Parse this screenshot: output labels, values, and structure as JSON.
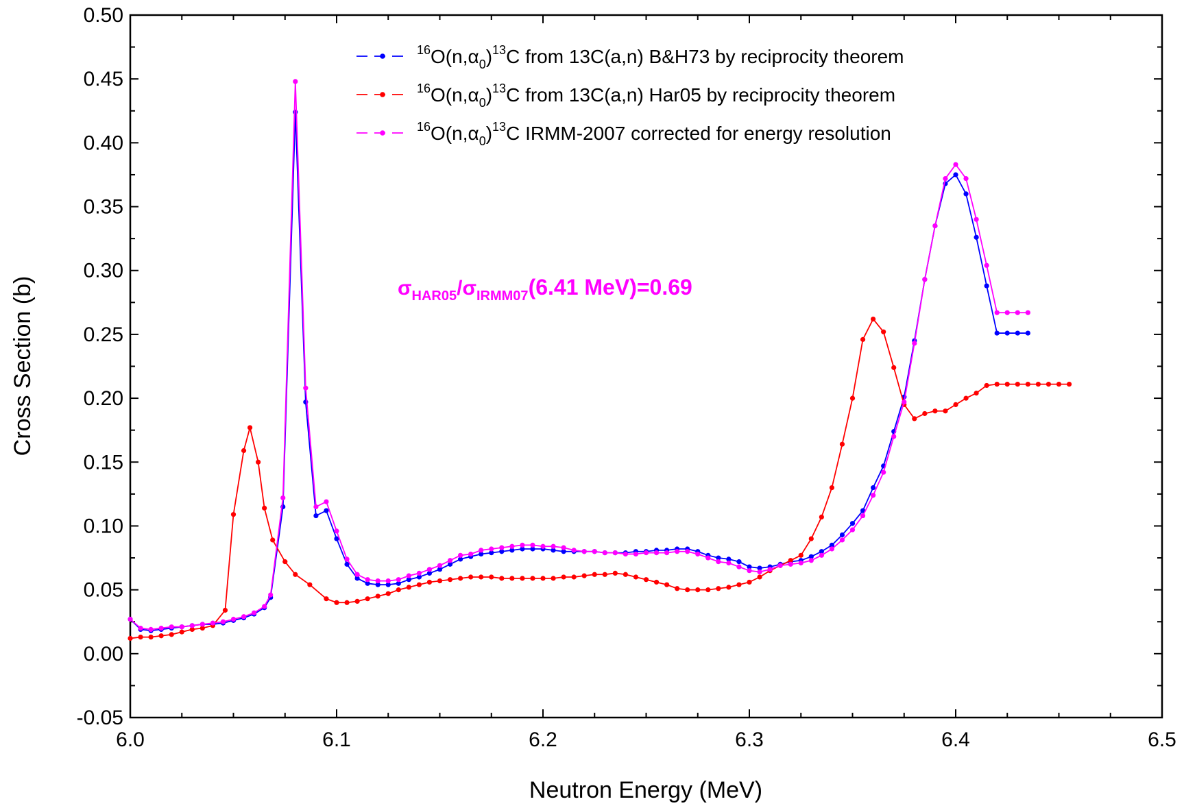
{
  "chart_data": {
    "type": "line",
    "xlabel": "Neutron Energy (MeV)",
    "ylabel": "Cross Section (b)",
    "xlim": [
      6.0,
      6.5
    ],
    "ylim": [
      -0.05,
      0.5
    ],
    "x_ticks": [
      "6.0",
      "6.1",
      "6.2",
      "6.3",
      "6.4",
      "6.5"
    ],
    "y_ticks": [
      "-0.05",
      "0.00",
      "0.05",
      "0.10",
      "0.15",
      "0.20",
      "0.25",
      "0.30",
      "0.35",
      "0.40",
      "0.45",
      "0.50"
    ],
    "grid": false,
    "legend_position": "top",
    "annotation": {
      "sigma": "σ",
      "sub1": "HAR05",
      "slash": "/",
      "sub2": "IRMM07",
      "rest": "(6.41 MeV)=0.69",
      "color": "#ff00ff"
    },
    "series": [
      {
        "legend": {
          "sup1": "16",
          "pre": "O(n,α",
          "sub": "0",
          "post": ")",
          "sup2": "13",
          "text": "C from 13C(a,n) B&H73 by reciprocity theorem"
        },
        "color": "#0000ff",
        "x": [
          6.0,
          6.005,
          6.01,
          6.015,
          6.02,
          6.025,
          6.03,
          6.035,
          6.04,
          6.045,
          6.05,
          6.055,
          6.06,
          6.065,
          6.068,
          6.074,
          6.08,
          6.085,
          6.09,
          6.095,
          6.1,
          6.105,
          6.11,
          6.115,
          6.12,
          6.125,
          6.13,
          6.135,
          6.14,
          6.145,
          6.15,
          6.155,
          6.16,
          6.165,
          6.17,
          6.175,
          6.18,
          6.185,
          6.19,
          6.195,
          6.2,
          6.205,
          6.21,
          6.215,
          6.22,
          6.225,
          6.23,
          6.235,
          6.24,
          6.245,
          6.25,
          6.255,
          6.26,
          6.265,
          6.27,
          6.275,
          6.28,
          6.285,
          6.29,
          6.295,
          6.3,
          6.305,
          6.31,
          6.315,
          6.32,
          6.325,
          6.33,
          6.335,
          6.34,
          6.345,
          6.35,
          6.355,
          6.36,
          6.365,
          6.37,
          6.375,
          6.38,
          6.385,
          6.39,
          6.395,
          6.4,
          6.405,
          6.41,
          6.415,
          6.42,
          6.425,
          6.43,
          6.435
        ],
        "y": [
          0.027,
          0.019,
          0.018,
          0.019,
          0.02,
          0.021,
          0.022,
          0.023,
          0.023,
          0.024,
          0.026,
          0.028,
          0.031,
          0.036,
          0.044,
          0.115,
          0.424,
          0.197,
          0.108,
          0.112,
          0.09,
          0.07,
          0.059,
          0.055,
          0.054,
          0.054,
          0.055,
          0.058,
          0.06,
          0.063,
          0.066,
          0.07,
          0.074,
          0.076,
          0.078,
          0.079,
          0.08,
          0.081,
          0.082,
          0.082,
          0.082,
          0.081,
          0.08,
          0.08,
          0.08,
          0.08,
          0.079,
          0.079,
          0.079,
          0.08,
          0.08,
          0.081,
          0.081,
          0.082,
          0.082,
          0.08,
          0.077,
          0.075,
          0.074,
          0.072,
          0.068,
          0.067,
          0.068,
          0.07,
          0.072,
          0.073,
          0.076,
          0.08,
          0.085,
          0.093,
          0.102,
          0.112,
          0.13,
          0.147,
          0.174,
          0.201,
          0.245,
          0.293,
          0.335,
          0.368,
          0.375,
          0.36,
          0.326,
          0.288,
          0.251,
          0.251,
          0.251,
          0.251
        ]
      },
      {
        "legend": {
          "sup1": "16",
          "pre": "O(n,α",
          "sub": "0",
          "post": ")",
          "sup2": "13",
          "text": "C from 13C(a,n) Har05 by reciprocity theorem"
        },
        "color": "#ff0000",
        "x": [
          6.0,
          6.005,
          6.01,
          6.015,
          6.02,
          6.025,
          6.03,
          6.035,
          6.04,
          6.046,
          6.05,
          6.055,
          6.058,
          6.062,
          6.065,
          6.069,
          6.075,
          6.08,
          6.087,
          6.095,
          6.1,
          6.105,
          6.11,
          6.115,
          6.12,
          6.125,
          6.13,
          6.135,
          6.14,
          6.145,
          6.15,
          6.155,
          6.16,
          6.165,
          6.17,
          6.175,
          6.18,
          6.185,
          6.19,
          6.195,
          6.2,
          6.205,
          6.21,
          6.215,
          6.22,
          6.225,
          6.23,
          6.235,
          6.24,
          6.245,
          6.25,
          6.255,
          6.26,
          6.265,
          6.27,
          6.275,
          6.28,
          6.285,
          6.29,
          6.295,
          6.3,
          6.305,
          6.31,
          6.315,
          6.32,
          6.325,
          6.33,
          6.335,
          6.34,
          6.345,
          6.35,
          6.355,
          6.36,
          6.365,
          6.37,
          6.375,
          6.38,
          6.385,
          6.39,
          6.395,
          6.4,
          6.405,
          6.41,
          6.415,
          6.42,
          6.425,
          6.43,
          6.435,
          6.44,
          6.445,
          6.45,
          6.455
        ],
        "y": [
          0.012,
          0.013,
          0.013,
          0.014,
          0.015,
          0.017,
          0.019,
          0.02,
          0.022,
          0.034,
          0.109,
          0.159,
          0.177,
          0.15,
          0.114,
          0.089,
          0.072,
          0.062,
          0.054,
          0.043,
          0.04,
          0.04,
          0.041,
          0.043,
          0.045,
          0.047,
          0.05,
          0.052,
          0.054,
          0.056,
          0.057,
          0.058,
          0.059,
          0.06,
          0.06,
          0.06,
          0.059,
          0.059,
          0.059,
          0.059,
          0.059,
          0.059,
          0.06,
          0.06,
          0.061,
          0.062,
          0.062,
          0.063,
          0.062,
          0.06,
          0.058,
          0.056,
          0.054,
          0.051,
          0.05,
          0.05,
          0.05,
          0.051,
          0.052,
          0.054,
          0.056,
          0.06,
          0.065,
          0.069,
          0.073,
          0.077,
          0.09,
          0.107,
          0.13,
          0.164,
          0.2,
          0.246,
          0.262,
          0.252,
          0.224,
          0.195,
          0.184,
          0.188,
          0.19,
          0.19,
          0.195,
          0.2,
          0.204,
          0.21,
          0.211,
          0.211,
          0.211,
          0.211,
          0.211,
          0.211,
          0.211,
          0.211
        ]
      },
      {
        "legend": {
          "sup1": "16",
          "pre": "O(n,α",
          "sub": "0",
          "post": ")",
          "sup2": "13",
          "text": "C IRMM-2007 corrected for energy resolution"
        },
        "color": "#ff00ff",
        "x": [
          6.0,
          6.005,
          6.01,
          6.015,
          6.02,
          6.025,
          6.03,
          6.035,
          6.04,
          6.045,
          6.05,
          6.055,
          6.06,
          6.065,
          6.068,
          6.074,
          6.08,
          6.085,
          6.09,
          6.095,
          6.1,
          6.105,
          6.11,
          6.115,
          6.12,
          6.125,
          6.13,
          6.135,
          6.14,
          6.145,
          6.15,
          6.155,
          6.16,
          6.165,
          6.17,
          6.175,
          6.18,
          6.185,
          6.19,
          6.195,
          6.2,
          6.205,
          6.21,
          6.215,
          6.22,
          6.225,
          6.23,
          6.235,
          6.24,
          6.245,
          6.25,
          6.255,
          6.26,
          6.265,
          6.27,
          6.275,
          6.28,
          6.285,
          6.29,
          6.295,
          6.3,
          6.305,
          6.31,
          6.315,
          6.32,
          6.325,
          6.33,
          6.335,
          6.34,
          6.345,
          6.35,
          6.355,
          6.36,
          6.365,
          6.37,
          6.375,
          6.38,
          6.385,
          6.39,
          6.395,
          6.4,
          6.405,
          6.41,
          6.415,
          6.42,
          6.425,
          6.43,
          6.435
        ],
        "y": [
          0.027,
          0.02,
          0.019,
          0.02,
          0.021,
          0.021,
          0.022,
          0.023,
          0.024,
          0.025,
          0.027,
          0.029,
          0.032,
          0.037,
          0.046,
          0.122,
          0.448,
          0.208,
          0.115,
          0.119,
          0.096,
          0.074,
          0.062,
          0.058,
          0.057,
          0.057,
          0.058,
          0.061,
          0.063,
          0.066,
          0.069,
          0.073,
          0.077,
          0.078,
          0.081,
          0.082,
          0.083,
          0.084,
          0.085,
          0.085,
          0.084,
          0.084,
          0.083,
          0.081,
          0.08,
          0.08,
          0.079,
          0.079,
          0.078,
          0.078,
          0.079,
          0.079,
          0.079,
          0.08,
          0.08,
          0.078,
          0.075,
          0.072,
          0.071,
          0.068,
          0.065,
          0.064,
          0.066,
          0.069,
          0.07,
          0.071,
          0.073,
          0.077,
          0.082,
          0.089,
          0.097,
          0.108,
          0.124,
          0.142,
          0.17,
          0.197,
          0.243,
          0.293,
          0.335,
          0.372,
          0.383,
          0.372,
          0.34,
          0.304,
          0.267,
          0.267,
          0.267,
          0.267
        ]
      }
    ]
  }
}
